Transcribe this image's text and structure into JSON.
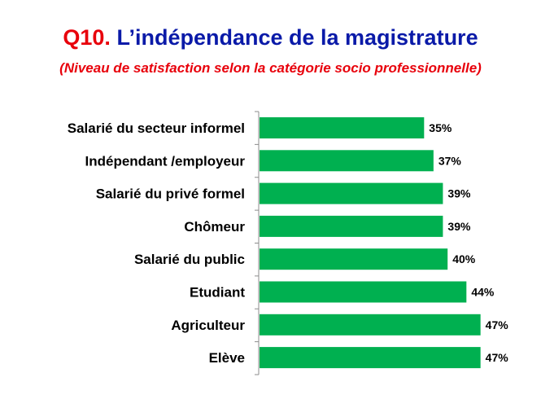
{
  "header": {
    "title_prefix": "Q10.",
    "title_main": "L’indépendance de la magistrature",
    "subtitle": "(Niveau de satisfaction selon la catégorie socio professionnelle)"
  },
  "chart_data": {
    "type": "bar",
    "orientation": "horizontal",
    "categories": [
      "Salarié du secteur informel",
      "Indépendant /employeur",
      "Salarié du privé formel",
      "Chômeur",
      "Salarié du public",
      "Etudiant",
      "Agriculteur",
      "Elève"
    ],
    "values": [
      35,
      37,
      39,
      39,
      40,
      44,
      47,
      47
    ],
    "value_labels": [
      "35%",
      "37%",
      "39%",
      "39%",
      "40%",
      "44%",
      "47%",
      "47%"
    ],
    "xlim": [
      0,
      100
    ],
    "unit": "%",
    "grid": false,
    "legend": "none",
    "bar_color": "#00b050"
  }
}
